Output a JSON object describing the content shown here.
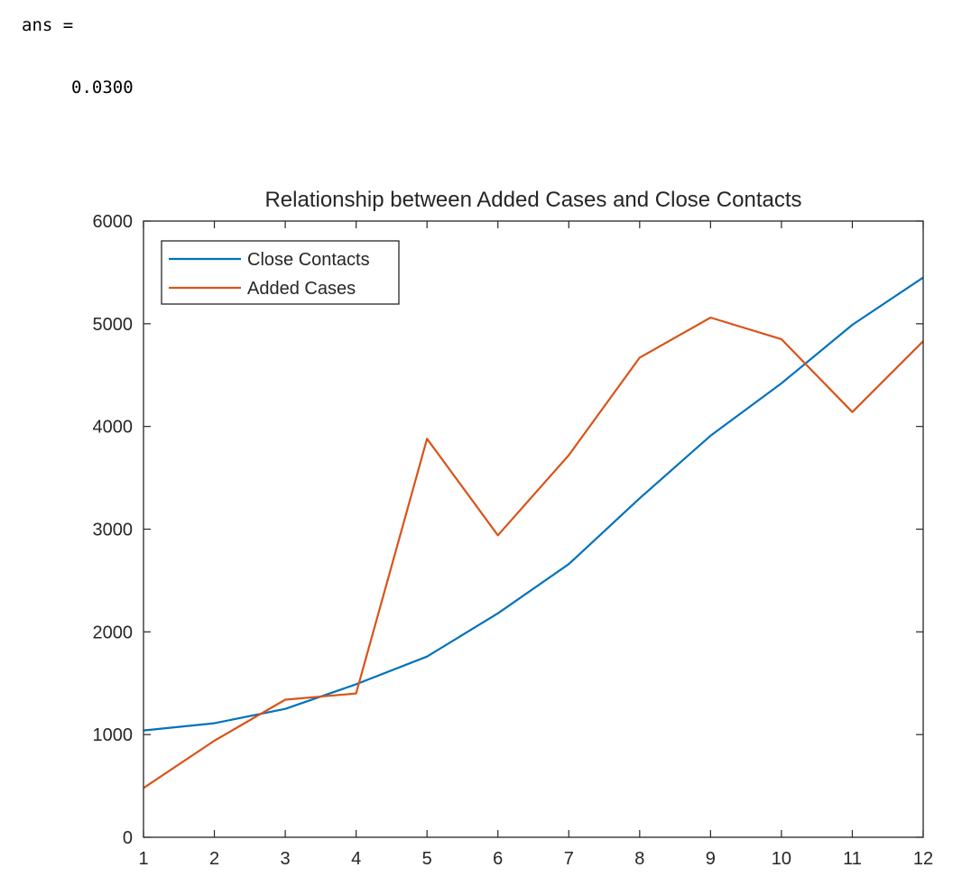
{
  "console": {
    "ans_label": "ans =",
    "ans_value": "0.0300"
  },
  "chart_data": {
    "type": "line",
    "title": "Relationship between Added Cases and Close Contacts",
    "xlabel": "",
    "ylabel": "",
    "x": [
      1,
      2,
      3,
      4,
      5,
      6,
      7,
      8,
      9,
      10,
      11,
      12
    ],
    "xlim": [
      1,
      12
    ],
    "ylim": [
      0,
      6000
    ],
    "xticks": [
      "1",
      "2",
      "3",
      "4",
      "5",
      "6",
      "7",
      "8",
      "9",
      "10",
      "11",
      "12"
    ],
    "yticks": [
      "0",
      "1000",
      "2000",
      "3000",
      "4000",
      "5000",
      "6000"
    ],
    "grid": false,
    "legend_position": "top-left",
    "series": [
      {
        "name": "Close Contacts",
        "color": "#0072BD",
        "values": [
          1040,
          1110,
          1250,
          1490,
          1760,
          2180,
          2660,
          3300,
          3910,
          4420,
          4990,
          5450
        ]
      },
      {
        "name": "Added Cases",
        "color": "#D95319",
        "values": [
          480,
          940,
          1340,
          1400,
          3880,
          2940,
          3720,
          4670,
          5060,
          4850,
          4140,
          4830
        ]
      }
    ]
  }
}
